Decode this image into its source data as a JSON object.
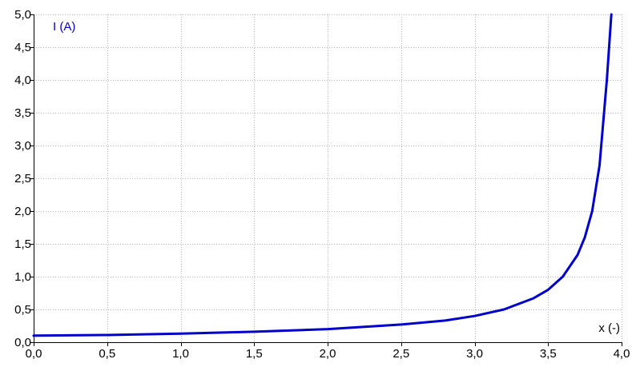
{
  "chart_data": {
    "type": "line",
    "title": "",
    "xlabel": "x (-)",
    "ylabel": "I (A)",
    "xlim": [
      0,
      4
    ],
    "ylim": [
      0,
      5
    ],
    "x_ticks": [
      "0,0",
      "0,5",
      "1,0",
      "1,5",
      "2,0",
      "2,5",
      "3,0",
      "3,5",
      "4,0"
    ],
    "y_ticks": [
      "0,0",
      "0,5",
      "1,0",
      "1,5",
      "2,0",
      "2,5",
      "3,0",
      "3,5",
      "4,0",
      "4,5",
      "5,0"
    ],
    "grid": true,
    "series": [
      {
        "color": "#0000cc",
        "x": [
          0.0,
          0.5,
          1.0,
          1.5,
          2.0,
          2.5,
          2.8,
          3.0,
          3.2,
          3.4,
          3.5,
          3.6,
          3.7,
          3.75,
          3.8,
          3.85,
          3.9,
          3.93
        ],
        "y": [
          0.1,
          0.11,
          0.13,
          0.16,
          0.2,
          0.27,
          0.33,
          0.4,
          0.5,
          0.67,
          0.8,
          1.0,
          1.33,
          1.6,
          2.0,
          2.7,
          4.0,
          5.0
        ]
      }
    ]
  },
  "colors": {
    "axis": "#000000",
    "grid": "#b4b4b4",
    "label": "#0000cc"
  }
}
